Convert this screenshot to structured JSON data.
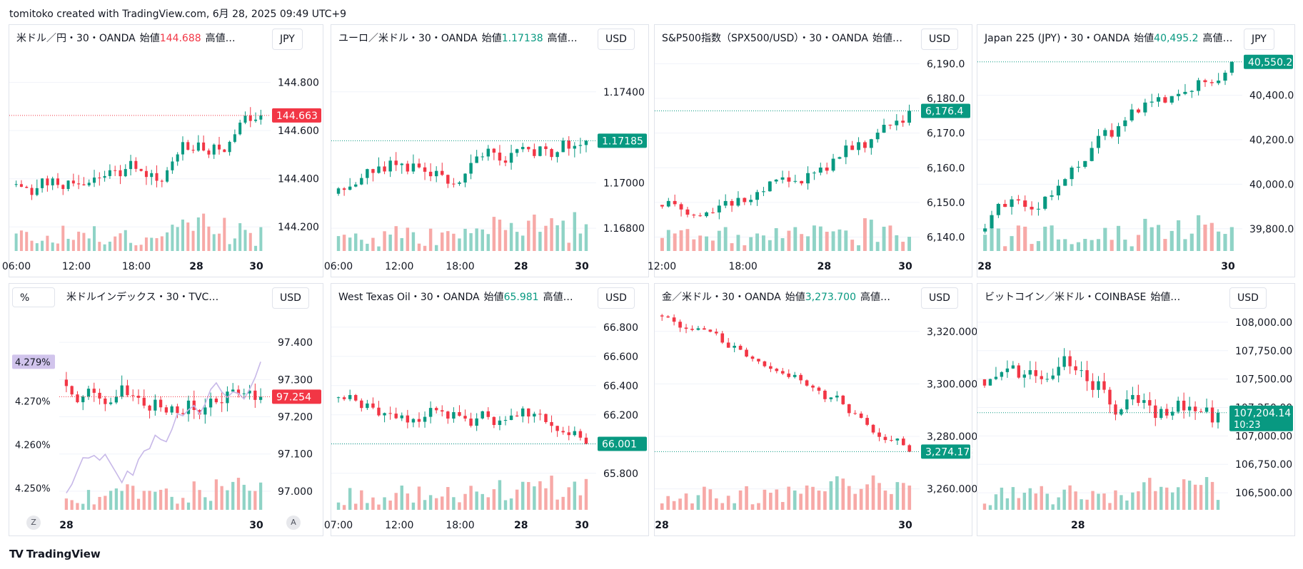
{
  "header": {
    "text": "tomitoko created with TradingView.com, 6月 28, 2025 09:49 UTC+9"
  },
  "footer": {
    "brand": "TradingView",
    "logo": "tradingview-logo"
  },
  "colors": {
    "up": "#089981",
    "down": "#f23645",
    "vol_up": "#8fd3c6",
    "vol_down": "#f7a9a7",
    "line": "#c7b8e8",
    "grid": "#f0f3fa"
  },
  "chart_data": [
    {
      "type": "candlestick",
      "title": "米ドル／円・30・OANDA",
      "open_label": "始値",
      "open_value": "144.688",
      "open_dir": "down",
      "more_label": "高値…",
      "currency": "JPY",
      "ylim": [
        144.1,
        144.95
      ],
      "yticks": [
        "144.200",
        "144.400",
        "144.600",
        "144.800"
      ],
      "ytick_values": [
        144.2,
        144.4,
        144.6,
        144.8
      ],
      "xticks": [
        "06:00",
        "12:00",
        "18:00",
        "28",
        "30"
      ],
      "last_value": "144.663",
      "last_num": 144.663,
      "last_dir": "down",
      "start": 144.4,
      "end": 144.663,
      "n": 48,
      "volatility": 0.045,
      "seed": 11
    },
    {
      "type": "candlestick",
      "title": "ユーロ／米ドル・30・OANDA",
      "open_label": "始値",
      "open_value": "1.17138",
      "open_dir": "up",
      "more_label": "高値…",
      "currency": "USD",
      "ylim": [
        1.167,
        1.176
      ],
      "yticks": [
        "1.16800",
        "1.17000",
        "1.17400"
      ],
      "ytick_values": [
        1.168,
        1.17,
        1.174
      ],
      "xticks": [
        "06:00",
        "12:00",
        "18:00",
        "28",
        "30"
      ],
      "last_value": "1.17185",
      "last_num": 1.17185,
      "last_dir": "up",
      "start": 1.17,
      "end": 1.17185,
      "n": 44,
      "volatility": 0.0005,
      "seed": 23
    },
    {
      "type": "candlestick",
      "title": "S&P500指数（SPX500/USD）・30・OANDA",
      "open_label": "始値…",
      "open_value": "",
      "open_dir": "up",
      "more_label": "",
      "currency": "USD",
      "ylim": [
        6136,
        6195
      ],
      "yticks": [
        "6,140.0",
        "6,150.0",
        "6,160.0",
        "6,170.0",
        "6,180.0",
        "6,190.0"
      ],
      "ytick_values": [
        6140,
        6150,
        6160,
        6170,
        6180,
        6190
      ],
      "xticks": [
        "12:00",
        "18:00",
        "28",
        "30"
      ],
      "last_value": "6,176.4",
      "last_num": 6176.4,
      "last_dir": "up",
      "start": 6150,
      "end": 6176.4,
      "n": 40,
      "volatility": 2.6,
      "seed": 37
    },
    {
      "type": "candlestick",
      "title": "Japan 225 (JPY)・30・OANDA",
      "open_label": "始値",
      "open_value": "40,495.2",
      "open_dir": "up",
      "more_label": "高値…",
      "currency": "JPY",
      "ylim": [
        39700,
        40620
      ],
      "yticks": [
        "39,800.0",
        "40,000.0",
        "40,200.0",
        "40,400.0"
      ],
      "ytick_values": [
        39800,
        40000,
        40200,
        40400
      ],
      "xticks": [
        "28",
        "30"
      ],
      "last_value": "40,550.2",
      "last_num": 40550.2,
      "last_dir": "up",
      "start": 39820,
      "end": 40550.2,
      "n": 38,
      "volatility": 45,
      "seed": 41
    },
    {
      "type": "candlestick_with_line",
      "title": "米ドルインデックス・30・TVC…",
      "open_label": "",
      "open_value": "",
      "open_dir": "down",
      "more_label": "",
      "currency": "USD",
      "left_unit": "%",
      "ylim": [
        96.95,
        97.5
      ],
      "yticks": [
        "97.000",
        "97.100",
        "97.200",
        "97.300",
        "97.400"
      ],
      "ytick_values": [
        97.0,
        97.1,
        97.2,
        97.3,
        97.4
      ],
      "left_yticks": [
        "4.250%",
        "4.260%",
        "4.270%"
      ],
      "left_ylim": [
        4.245,
        4.292
      ],
      "left_ytick_values": [
        4.25,
        4.26,
        4.27
      ],
      "line_last_value": "4.279%",
      "line_last_num": 4.279,
      "xticks": [
        "28",
        "30"
      ],
      "last_value": "97.254",
      "last_num": 97.254,
      "last_dir": "down",
      "start": 97.3,
      "end": 97.254,
      "n": 36,
      "volatility": 0.035,
      "seed": 53,
      "circle_left": "Z",
      "circle_right": "A"
    },
    {
      "type": "candlestick",
      "title": "West Texas Oil・30・OANDA",
      "open_label": "始値",
      "open_value": "65.981",
      "open_dir": "up",
      "more_label": "高値…",
      "currency": "USD",
      "ylim": [
        65.55,
        66.95
      ],
      "yticks": [
        "65.800",
        "66.000",
        "66.200",
        "66.400",
        "66.600",
        "66.800"
      ],
      "ytick_values": [
        65.8,
        66.0,
        66.2,
        66.4,
        66.6,
        66.8
      ],
      "xticks": [
        "07:00",
        "12:00",
        "18:00",
        "28",
        "30"
      ],
      "last_value": "66.001",
      "last_num": 66.001,
      "last_dir": "up",
      "start": 66.35,
      "end": 66.001,
      "n": 44,
      "volatility": 0.06,
      "seed": 67
    },
    {
      "type": "candlestick",
      "title": "金／米ドル・30・OANDA",
      "open_label": "始値",
      "open_value": "3,273.700",
      "open_dir": "up",
      "more_label": "高値…",
      "currency": "USD",
      "ylim": [
        3252,
        3330
      ],
      "yticks": [
        "3,260.000",
        "3,280.000",
        "3,300.000",
        "3,320.000"
      ],
      "ytick_values": [
        3260,
        3280,
        3300,
        3320
      ],
      "xticks": [
        "28",
        "30"
      ],
      "last_value": "3,274.175",
      "last_num": 3274.175,
      "last_dir": "up",
      "start": 3327,
      "end": 3274.175,
      "n": 42,
      "volatility": 2.2,
      "seed": 71
    },
    {
      "type": "candlestick",
      "title": "ビットコイン／米ドル・COINBASE",
      "open_label": "始値…",
      "open_value": "",
      "open_dir": "up",
      "more_label": "",
      "currency": "USD",
      "ylim": [
        106350,
        108150
      ],
      "yticks": [
        "106,500.00",
        "106,750.00",
        "107,000.00",
        "107,250.00",
        "107,500.00",
        "107,750.00",
        "108,000.00"
      ],
      "ytick_values": [
        106500,
        106750,
        107000,
        107250,
        107500,
        107750,
        108000
      ],
      "xticks": [
        "28"
      ],
      "last_value": "107,204.14",
      "last_num": 107204.14,
      "last_time": "10:23",
      "last_dir": "up",
      "start": 107500,
      "end": 107204.14,
      "n": 42,
      "volatility": 120,
      "seed": 83
    }
  ]
}
